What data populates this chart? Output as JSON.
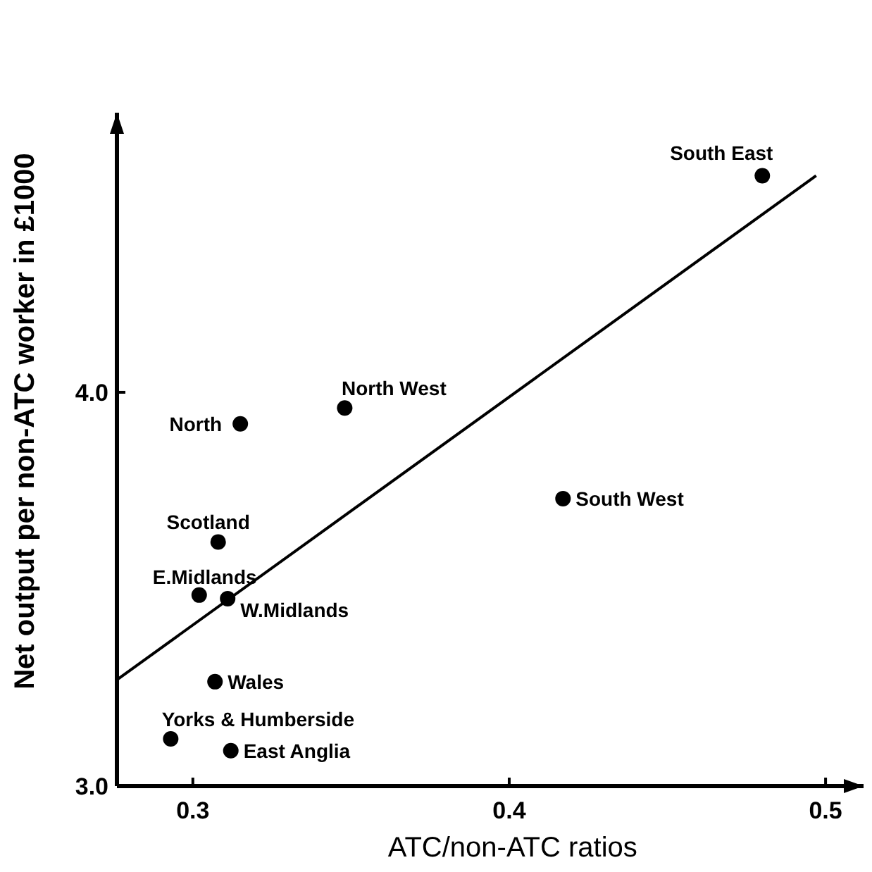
{
  "chart_data": {
    "type": "scatter",
    "xlabel": "ATC/non-ATC ratios",
    "ylabel": "Net output per non-ATC worker in £1000",
    "xlim": [
      0.276,
      0.512
    ],
    "ylim": [
      3.0,
      4.71
    ],
    "xticks": [
      {
        "value": 0.3,
        "label": "0.3"
      },
      {
        "value": 0.4,
        "label": "0.4"
      },
      {
        "value": 0.5,
        "label": "0.5"
      }
    ],
    "yticks": [
      {
        "value": 3.0,
        "label": "3.0"
      },
      {
        "value": 4.0,
        "label": "4.0"
      }
    ],
    "grid": false,
    "series": [
      {
        "type": "scatter",
        "marker": "circle",
        "color": "#000000",
        "x": [
          0.48,
          0.348,
          0.315,
          0.417,
          0.308,
          0.302,
          0.311,
          0.307,
          0.293,
          0.312
        ],
        "values": [
          4.55,
          3.96,
          3.92,
          3.73,
          3.62,
          3.485,
          3.476,
          3.265,
          3.12,
          3.09
        ]
      },
      {
        "type": "line",
        "color": "#000000",
        "x": [
          0.276,
          0.497
        ],
        "values": [
          3.27,
          4.55
        ]
      }
    ],
    "annotations": [
      {
        "text": "South East",
        "x": 0.48,
        "y": 4.55
      },
      {
        "text": "North West",
        "x": 0.348,
        "y": 3.96
      },
      {
        "text": "North",
        "x": 0.315,
        "y": 3.92
      },
      {
        "text": "South West",
        "x": 0.417,
        "y": 3.73
      },
      {
        "text": "Scotland",
        "x": 0.308,
        "y": 3.62
      },
      {
        "text": "E.Midlands",
        "x": 0.302,
        "y": 3.485
      },
      {
        "text": "W.Midlands",
        "x": 0.311,
        "y": 3.476
      },
      {
        "text": "Wales",
        "x": 0.307,
        "y": 3.265
      },
      {
        "text": "Yorks & Humberside",
        "x": 0.293,
        "y": 3.12
      },
      {
        "text": "East Anglia",
        "x": 0.312,
        "y": 3.09
      }
    ]
  }
}
